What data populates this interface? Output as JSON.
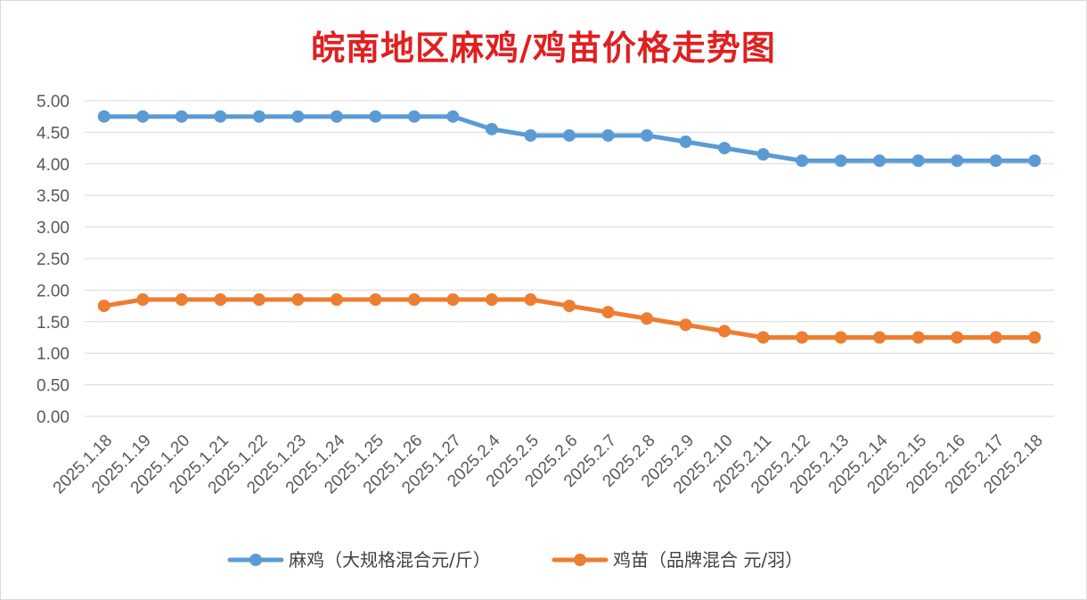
{
  "chart_data": {
    "type": "line",
    "title": "皖南地区麻鸡/鸡苗价格走势图",
    "xlabel": "",
    "ylabel": "",
    "ylim": [
      0,
      5
    ],
    "y_tick_labels": [
      "0.00",
      "0.50",
      "1.00",
      "1.50",
      "2.00",
      "2.50",
      "3.00",
      "3.50",
      "4.00",
      "4.50",
      "5.00"
    ],
    "grid": "horizontal",
    "legend_position": "bottom",
    "categories": [
      "2025.1.18",
      "2025.1.19",
      "2025.1.20",
      "2025.1.21",
      "2025.1.22",
      "2025.1.23",
      "2025.1.24",
      "2025.1.25",
      "2025.1.26",
      "2025.1.27",
      "2025.2.4",
      "2025.2.5",
      "2025.2.6",
      "2025.2.7",
      "2025.2.8",
      "2025.2.9",
      "2025.2.10",
      "2025.2.11",
      "2025.2.12",
      "2025.2.13",
      "2025.2.14",
      "2025.2.15",
      "2025.2.16",
      "2025.2.17",
      "2025.2.18"
    ],
    "series": [
      {
        "name": "麻鸡（大规格混合元/斤）",
        "color": "#5b9bd5",
        "values": [
          4.75,
          4.75,
          4.75,
          4.75,
          4.75,
          4.75,
          4.75,
          4.75,
          4.75,
          4.75,
          4.55,
          4.45,
          4.45,
          4.45,
          4.45,
          4.35,
          4.25,
          4.15,
          4.05,
          4.05,
          4.05,
          4.05,
          4.05,
          4.05,
          4.05
        ]
      },
      {
        "name": "鸡苗（品牌混合 元/羽）",
        "color": "#ed7d31",
        "values": [
          1.75,
          1.85,
          1.85,
          1.85,
          1.85,
          1.85,
          1.85,
          1.85,
          1.85,
          1.85,
          1.85,
          1.85,
          1.75,
          1.65,
          1.55,
          1.45,
          1.35,
          1.25,
          1.25,
          1.25,
          1.25,
          1.25,
          1.25,
          1.25,
          1.25
        ]
      }
    ]
  }
}
